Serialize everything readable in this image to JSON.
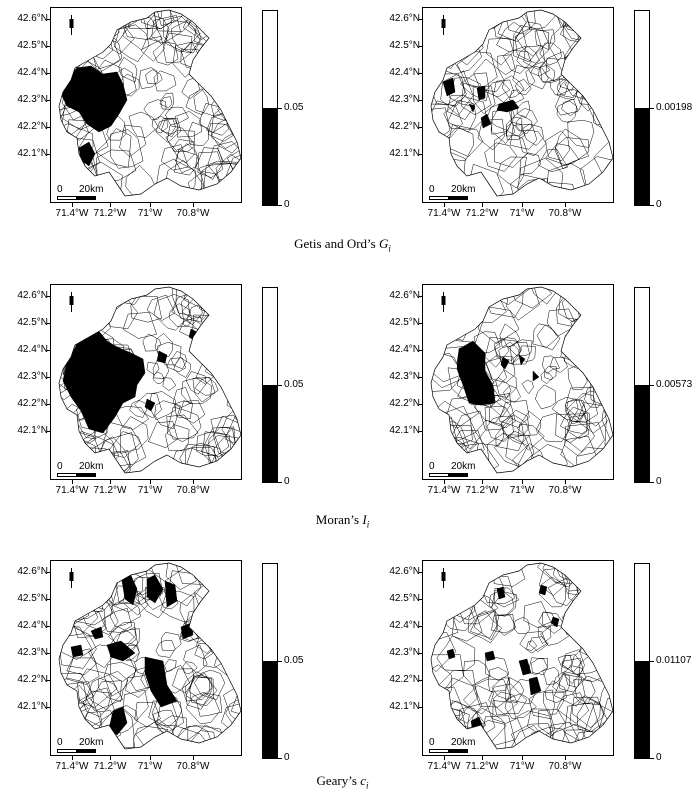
{
  "axes": {
    "y_labels": [
      "42.6°N",
      "42.5°N",
      "42.4°N",
      "42.3°N",
      "42.2°N",
      "42.1°N"
    ],
    "x_labels": [
      "71.4°W",
      "71.2°W",
      "71°W",
      "70.8°W"
    ]
  },
  "scale": {
    "zero": "0",
    "distance": "20km"
  },
  "legend_zero": "0",
  "panels": [
    {
      "row": 0,
      "col": 0,
      "legend_threshold": "0.05",
      "legend_fill": 0.5,
      "map_fill_color": "#000000"
    },
    {
      "row": 0,
      "col": 1,
      "legend_threshold": "0.00198",
      "legend_fill": 0.5,
      "map_fill_color": "#000000"
    },
    {
      "row": 1,
      "col": 0,
      "legend_threshold": "0.05",
      "legend_fill": 0.5,
      "map_fill_color": "#000000"
    },
    {
      "row": 1,
      "col": 1,
      "legend_threshold": "0.00573",
      "legend_fill": 0.5,
      "map_fill_color": "#000000"
    },
    {
      "row": 2,
      "col": 0,
      "legend_threshold": "0.05",
      "legend_fill": 0.5,
      "map_fill_color": "#000000"
    },
    {
      "row": 2,
      "col": 1,
      "legend_threshold": "0.01107",
      "legend_fill": 0.5,
      "map_fill_color": "#000000"
    }
  ],
  "captions": [
    {
      "text": "Getis and Ord’s ",
      "symbol": "G",
      "sub": "i"
    },
    {
      "text": "Moran’s ",
      "symbol": "I",
      "sub": "i"
    },
    {
      "text": "Geary’s ",
      "symbol": "c",
      "sub": "i"
    }
  ]
}
